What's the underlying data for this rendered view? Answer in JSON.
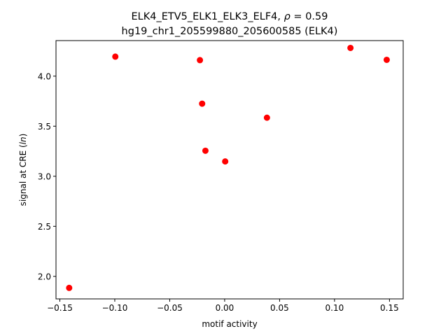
{
  "chart_data": {
    "type": "scatter",
    "title_line1": "ELK4_ETV5_ELK1_ELK3_ELF4, ",
    "title_rho_symbol": "ρ",
    "title_rho_value": " = 0.59",
    "title_line2": "hg19_chr1_205599880_205600585 (ELK4)",
    "xlabel": "motif activity",
    "ylabel_prefix": "signal at CRE (",
    "ylabel_italic": "ln",
    "ylabel_suffix": ")",
    "xlim": [
      -0.1535,
      0.1625
    ],
    "ylim": [
      1.775,
      4.355
    ],
    "xticks": [
      -0.15,
      -0.1,
      -0.05,
      0.0,
      0.05,
      0.1,
      0.15
    ],
    "xtick_labels": [
      "−0.15",
      "−0.10",
      "−0.05",
      "0.00",
      "0.05",
      "0.10",
      "0.15"
    ],
    "yticks": [
      2.0,
      2.5,
      3.0,
      3.5,
      4.0
    ],
    "ytick_labels": [
      "2.0",
      "2.5",
      "3.0",
      "3.5",
      "4.0"
    ],
    "marker_color": "#ff0000",
    "grid": false,
    "points": [
      {
        "x": -0.1415,
        "y": 1.885
      },
      {
        "x": -0.0995,
        "y": 4.195
      },
      {
        "x": -0.0225,
        "y": 4.16
      },
      {
        "x": -0.0205,
        "y": 3.725
      },
      {
        "x": -0.0175,
        "y": 3.255
      },
      {
        "x": 0.0005,
        "y": 3.148
      },
      {
        "x": 0.0385,
        "y": 3.585
      },
      {
        "x": 0.1145,
        "y": 4.282
      },
      {
        "x": 0.1475,
        "y": 4.163
      }
    ]
  }
}
